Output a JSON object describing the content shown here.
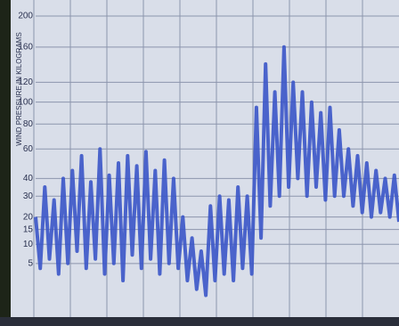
{
  "chart_data": {
    "type": "line",
    "y_label": "WIND PRESSURE IN KILOGRAMS",
    "color": "#3a55c8",
    "scale": "sqrt",
    "ylim": [
      0,
      200
    ],
    "yticks": [
      5,
      10,
      15,
      20,
      30,
      40,
      60,
      80,
      100,
      120,
      160,
      200
    ],
    "grid": true,
    "values": [
      20,
      4,
      35,
      6,
      28,
      3,
      40,
      5,
      45,
      8,
      55,
      4,
      38,
      6,
      60,
      3,
      42,
      5,
      50,
      2,
      55,
      7,
      48,
      4,
      58,
      6,
      45,
      3,
      52,
      5,
      40,
      4,
      20,
      2,
      12,
      1,
      8,
      0.5,
      25,
      2,
      30,
      3,
      28,
      2,
      35,
      4,
      30,
      3,
      95,
      12,
      140,
      25,
      110,
      30,
      160,
      35,
      120,
      40,
      110,
      30,
      100,
      35,
      90,
      28,
      95,
      30,
      75,
      30,
      60,
      25,
      55,
      22,
      50,
      20,
      45,
      22,
      40,
      20,
      42,
      18
    ]
  }
}
